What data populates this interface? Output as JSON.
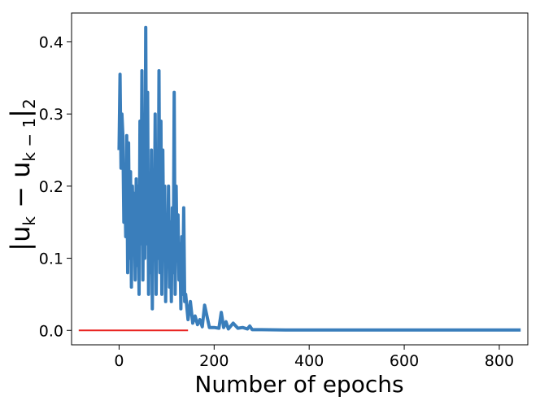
{
  "chart_data": {
    "type": "line",
    "title": "",
    "xlabel": "Number of epochs",
    "ylabel": {
      "main_left": "|u",
      "sub_left": "k",
      "main_mid": " − u",
      "sub_mid": "k − 1",
      "main_right": "|",
      "sub_right": "2"
    },
    "xlim": [
      -100,
      860
    ],
    "ylim": [
      -0.02,
      0.44
    ],
    "xticks": [
      0,
      200,
      400,
      600,
      800
    ],
    "xtick_labels": [
      "0",
      "200",
      "400",
      "600",
      "800"
    ],
    "yticks": [
      0.0,
      0.1,
      0.2,
      0.3,
      0.4
    ],
    "ytick_labels": [
      "0.0",
      "0.1",
      "0.2",
      "0.3",
      "0.4"
    ],
    "grid": false,
    "series": [
      {
        "color": "#3a7ebb",
        "x": [
          0,
          2,
          4,
          6,
          8,
          10,
          12,
          14,
          16,
          18,
          20,
          22,
          24,
          26,
          28,
          30,
          32,
          34,
          36,
          38,
          40,
          42,
          44,
          46,
          48,
          50,
          52,
          54,
          56,
          58,
          60,
          62,
          64,
          66,
          68,
          70,
          72,
          74,
          76,
          78,
          80,
          82,
          84,
          86,
          88,
          90,
          92,
          94,
          96,
          98,
          100,
          102,
          104,
          106,
          108,
          110,
          112,
          114,
          116,
          118,
          120,
          122,
          124,
          126,
          128,
          130,
          132,
          134,
          136,
          138,
          140,
          145,
          150,
          155,
          160,
          165,
          170,
          175,
          180,
          190,
          200,
          210,
          215,
          220,
          225,
          230,
          240,
          250,
          260,
          270,
          275,
          280,
          300,
          350,
          400,
          500,
          600,
          700,
          800,
          845
        ],
        "y": [
          0.25,
          0.355,
          0.225,
          0.3,
          0.27,
          0.15,
          0.21,
          0.13,
          0.27,
          0.08,
          0.26,
          0.1,
          0.22,
          0.06,
          0.2,
          0.12,
          0.19,
          0.07,
          0.21,
          0.09,
          0.2,
          0.05,
          0.29,
          0.12,
          0.36,
          0.07,
          0.25,
          0.1,
          0.42,
          0.12,
          0.33,
          0.05,
          0.2,
          0.08,
          0.25,
          0.03,
          0.2,
          0.12,
          0.3,
          0.05,
          0.19,
          0.1,
          0.36,
          0.08,
          0.29,
          0.05,
          0.25,
          0.1,
          0.2,
          0.04,
          0.16,
          0.09,
          0.2,
          0.06,
          0.15,
          0.04,
          0.17,
          0.08,
          0.33,
          0.05,
          0.2,
          0.1,
          0.16,
          0.07,
          0.12,
          0.03,
          0.13,
          0.05,
          0.17,
          0.04,
          0.05,
          0.015,
          0.04,
          0.01,
          0.02,
          0.008,
          0.015,
          0.005,
          0.035,
          0.004,
          0.004,
          0.003,
          0.025,
          0.004,
          0.012,
          0.002,
          0.01,
          0.003,
          0.004,
          0.002,
          0.006,
          0.001,
          0.001,
          0.0005,
          0.0005,
          0.0005,
          0.0005,
          0.0005,
          0.0005,
          0.0005
        ]
      },
      {
        "color": "#e8211f",
        "x": [
          -85,
          145
        ],
        "y": [
          0.0,
          0.0
        ]
      }
    ]
  }
}
